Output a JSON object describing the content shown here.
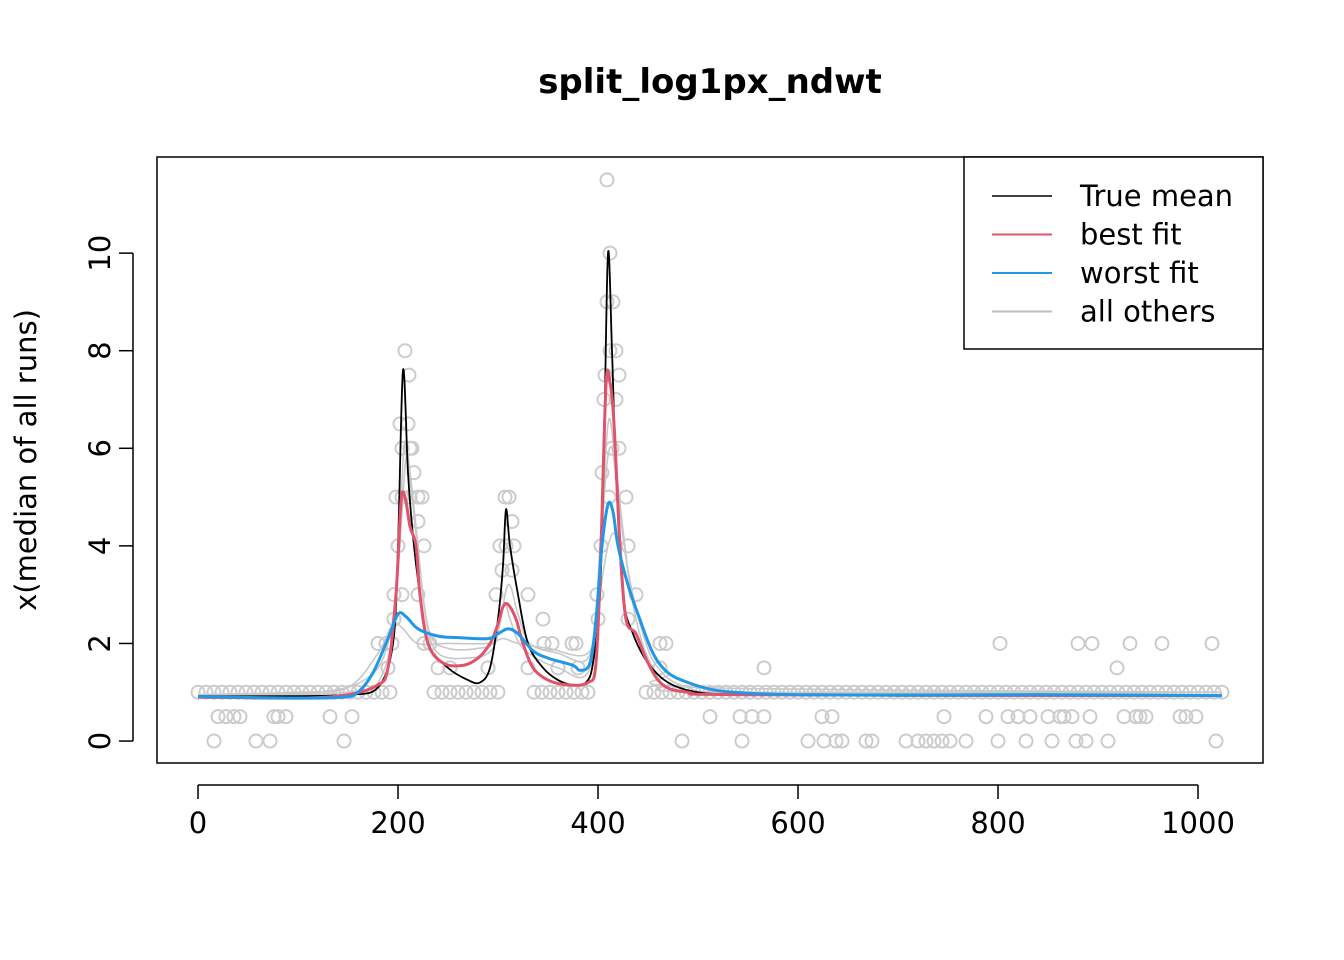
{
  "chart_data": {
    "type": "line",
    "title": "split_log1px_ndwt",
    "xlabel": "",
    "ylabel": "x(median of all runs)",
    "xlim": [
      -41,
      1065
    ],
    "ylim": [
      -0.45,
      11.97
    ],
    "xticks": [
      0,
      200,
      400,
      600,
      800,
      1000
    ],
    "yticks": [
      0,
      2,
      4,
      6,
      8,
      10
    ],
    "xtick_labels": [
      "0",
      "200",
      "400",
      "600",
      "800",
      "1000"
    ],
    "ytick_labels": [
      "0",
      "2",
      "4",
      "6",
      "8",
      "10"
    ],
    "grid": false,
    "legend": {
      "placement": "top-right",
      "entries": [
        {
          "label": "True mean",
          "color": "#000000"
        },
        {
          "label": "best fit",
          "color": "#DF536B"
        },
        {
          "label": "worst fit",
          "color": "#2297E6"
        },
        {
          "label": "all others",
          "color": "#BEBEBE"
        }
      ]
    },
    "series": [
      {
        "name": "all others",
        "color": "#C8C8C8",
        "role": "other",
        "points": [
          [
            0,
            0.95
          ],
          [
            120,
            1.0
          ],
          [
            170,
            1.3
          ],
          [
            190,
            2.0
          ],
          [
            200,
            3.5
          ],
          [
            208,
            5.8
          ],
          [
            214,
            5.0
          ],
          [
            222,
            3.5
          ],
          [
            232,
            2.2
          ],
          [
            250,
            1.9
          ],
          [
            280,
            1.9
          ],
          [
            298,
            2.1
          ],
          [
            310,
            3.2
          ],
          [
            320,
            2.6
          ],
          [
            332,
            2.0
          ],
          [
            360,
            1.8
          ],
          [
            390,
            1.7
          ],
          [
            400,
            3.0
          ],
          [
            408,
            5.5
          ],
          [
            414,
            6.0
          ],
          [
            420,
            5.0
          ],
          [
            430,
            3.5
          ],
          [
            445,
            2.2
          ],
          [
            460,
            1.5
          ],
          [
            490,
            1.1
          ],
          [
            560,
            1.0
          ],
          [
            1024,
            1.0
          ]
        ]
      },
      {
        "name": "all others",
        "color": "#C8C8C8",
        "role": "other",
        "points": [
          [
            0,
            0.95
          ],
          [
            100,
            1.0
          ],
          [
            150,
            1.1
          ],
          [
            180,
            1.8
          ],
          [
            195,
            2.4
          ],
          [
            205,
            2.3
          ],
          [
            220,
            2.0
          ],
          [
            250,
            2.0
          ],
          [
            290,
            2.0
          ],
          [
            305,
            2.1
          ],
          [
            320,
            2.0
          ],
          [
            350,
            1.9
          ],
          [
            390,
            1.8
          ],
          [
            400,
            2.8
          ],
          [
            410,
            4.0
          ],
          [
            418,
            4.2
          ],
          [
            430,
            3.2
          ],
          [
            450,
            2.0
          ],
          [
            470,
            1.4
          ],
          [
            500,
            1.1
          ],
          [
            1024,
            1.0
          ]
        ]
      },
      {
        "name": "all others",
        "color": "#C8C8C8",
        "role": "other",
        "points": [
          [
            0,
            0.95
          ],
          [
            150,
            1.0
          ],
          [
            185,
            1.4
          ],
          [
            198,
            3.0
          ],
          [
            206,
            6.0
          ],
          [
            212,
            5.5
          ],
          [
            220,
            4.0
          ],
          [
            228,
            2.5
          ],
          [
            240,
            1.8
          ],
          [
            270,
            1.7
          ],
          [
            295,
            1.9
          ],
          [
            306,
            2.8
          ],
          [
            312,
            2.5
          ],
          [
            325,
            1.9
          ],
          [
            360,
            1.5
          ],
          [
            392,
            1.5
          ],
          [
            402,
            4.0
          ],
          [
            410,
            6.5
          ],
          [
            416,
            6.0
          ],
          [
            424,
            4.5
          ],
          [
            435,
            2.8
          ],
          [
            450,
            1.7
          ],
          [
            470,
            1.2
          ],
          [
            510,
            1.0
          ],
          [
            1024,
            1.0
          ]
        ]
      },
      {
        "name": "True mean",
        "color": "#000000",
        "role": "true",
        "points": [
          [
            0,
            0.92
          ],
          [
            100,
            0.92
          ],
          [
            150,
            0.95
          ],
          [
            180,
            1.1
          ],
          [
            195,
            2
          ],
          [
            200,
            4
          ],
          [
            205,
            7.6
          ],
          [
            210,
            5.5
          ],
          [
            215,
            4.2
          ],
          [
            222,
            3
          ],
          [
            230,
            2
          ],
          [
            250,
            1.5
          ],
          [
            270,
            1.25
          ],
          [
            282,
            1.2
          ],
          [
            292,
            1.5
          ],
          [
            300,
            2.5
          ],
          [
            305,
            3.6
          ],
          [
            308,
            4.75
          ],
          [
            312,
            4
          ],
          [
            320,
            3
          ],
          [
            330,
            2
          ],
          [
            345,
            1.5
          ],
          [
            360,
            1.25
          ],
          [
            375,
            1.15
          ],
          [
            388,
            1.2
          ],
          [
            395,
            1.6
          ],
          [
            402,
            3
          ],
          [
            406,
            6
          ],
          [
            410,
            10
          ],
          [
            414,
            8
          ],
          [
            418,
            5.5
          ],
          [
            425,
            3
          ],
          [
            435,
            2.2
          ],
          [
            450,
            1.6
          ],
          [
            470,
            1.2
          ],
          [
            500,
            1
          ],
          [
            550,
            0.95
          ],
          [
            700,
            0.93
          ],
          [
            1024,
            0.93
          ]
        ]
      },
      {
        "name": "best fit",
        "color": "#DF536B",
        "role": "best",
        "points": [
          [
            0,
            0.9
          ],
          [
            100,
            0.88
          ],
          [
            150,
            0.95
          ],
          [
            180,
            1.15
          ],
          [
            190,
            1.5
          ],
          [
            198,
            3
          ],
          [
            203,
            4.9
          ],
          [
            207,
            5
          ],
          [
            212,
            4.4
          ],
          [
            218,
            4
          ],
          [
            222,
            3
          ],
          [
            230,
            2
          ],
          [
            245,
            1.6
          ],
          [
            265,
            1.55
          ],
          [
            280,
            1.7
          ],
          [
            292,
            2
          ],
          [
            300,
            2.4
          ],
          [
            305,
            2.75
          ],
          [
            310,
            2.8
          ],
          [
            318,
            2.5
          ],
          [
            325,
            2
          ],
          [
            335,
            1.5
          ],
          [
            350,
            1.25
          ],
          [
            370,
            1.15
          ],
          [
            390,
            1.2
          ],
          [
            398,
            1.6
          ],
          [
            403,
            4
          ],
          [
            408,
            7.3
          ],
          [
            412,
            7.35
          ],
          [
            416,
            6.5
          ],
          [
            422,
            4
          ],
          [
            428,
            2.5
          ],
          [
            438,
            2.2
          ],
          [
            450,
            1.6
          ],
          [
            465,
            1.15
          ],
          [
            490,
            1
          ],
          [
            550,
            0.95
          ],
          [
            1024,
            0.93
          ]
        ]
      },
      {
        "name": "worst fit",
        "color": "#2297E6",
        "role": "worst",
        "points": [
          [
            0,
            0.91
          ],
          [
            100,
            0.88
          ],
          [
            145,
            0.9
          ],
          [
            160,
            1
          ],
          [
            175,
            1.4
          ],
          [
            190,
            2.1
          ],
          [
            200,
            2.6
          ],
          [
            208,
            2.55
          ],
          [
            220,
            2.3
          ],
          [
            240,
            2.15
          ],
          [
            260,
            2.12
          ],
          [
            290,
            2.1
          ],
          [
            300,
            2.2
          ],
          [
            310,
            2.3
          ],
          [
            320,
            2.2
          ],
          [
            335,
            1.85
          ],
          [
            350,
            1.7
          ],
          [
            375,
            1.55
          ],
          [
            382,
            1.45
          ],
          [
            392,
            1.6
          ],
          [
            398,
            2.5
          ],
          [
            404,
            4
          ],
          [
            410,
            4.85
          ],
          [
            415,
            4.7
          ],
          [
            420,
            4
          ],
          [
            430,
            3.2
          ],
          [
            440,
            2.6
          ],
          [
            455,
            1.8
          ],
          [
            470,
            1.4
          ],
          [
            490,
            1.2
          ],
          [
            515,
            1.05
          ],
          [
            550,
            0.98
          ],
          [
            600,
            0.95
          ],
          [
            700,
            0.94
          ],
          [
            850,
            0.95
          ],
          [
            1024,
            0.93
          ]
        ]
      }
    ],
    "scatter": {
      "color": "#CCCCCC",
      "groups": [
        {
          "y": 1,
          "x": [
            0,
            8,
            16,
            24,
            32,
            40,
            48,
            56,
            64,
            72,
            80,
            88,
            96,
            104,
            112,
            120,
            128,
            136,
            144,
            152,
            160,
            168,
            176,
            184,
            192,
            236,
            244,
            252,
            260,
            268,
            276,
            284,
            292,
            300,
            336,
            344,
            352,
            360,
            368,
            376,
            384,
            390,
            448,
            456,
            464,
            472,
            480,
            488,
            496,
            504,
            512,
            520,
            528,
            536,
            544,
            552,
            560,
            568,
            576,
            584,
            592,
            600,
            608,
            616,
            624,
            632,
            640,
            648,
            656,
            664,
            672,
            680,
            688,
            696,
            704,
            712,
            720,
            728,
            736,
            744,
            752,
            760,
            768,
            776,
            784,
            792,
            800,
            808,
            816,
            824,
            832,
            840,
            848,
            856,
            864,
            872,
            880,
            888,
            896,
            904,
            912,
            920,
            928,
            936,
            944,
            952,
            960,
            968,
            976,
            984,
            992,
            1000,
            1008,
            1016,
            1024
          ]
        },
        {
          "y": 0,
          "x": [
            16,
            58,
            72,
            146,
            484,
            544,
            610,
            626,
            638,
            644,
            668,
            674,
            708,
            720,
            728,
            736,
            744,
            752,
            768,
            800,
            828,
            854,
            878,
            888,
            910,
            1018
          ]
        },
        {
          "y": 0.5,
          "x": [
            20,
            28,
            36,
            42,
            76,
            80,
            88,
            132,
            154,
            512,
            542,
            554,
            566,
            624,
            634,
            746,
            788,
            810,
            820,
            832,
            850,
            862,
            866,
            874,
            892,
            926,
            938,
            942,
            948,
            982,
            988,
            998
          ]
        },
        {
          "y": 1.5,
          "x": [
            190,
            240,
            252,
            290,
            330,
            360,
            380,
            462,
            566,
            919
          ]
        },
        {
          "y": 2,
          "x": [
            180,
            188,
            194,
            226,
            232,
            346,
            354,
            374,
            378,
            462,
            468,
            802,
            880,
            894,
            932,
            964,
            1014
          ]
        },
        {
          "y": 2.5,
          "x": [
            196,
            345,
            400,
            430
          ]
        },
        {
          "y": 3,
          "x": [
            196,
            204,
            220,
            298,
            330,
            399,
            438
          ]
        },
        {
          "y": 3.5,
          "x": [
            304,
            314
          ]
        },
        {
          "y": 4,
          "x": [
            200,
            226,
            302,
            308,
            316,
            403,
            430
          ]
        },
        {
          "y": 4.5,
          "x": [
            220,
            314
          ]
        },
        {
          "y": 5,
          "x": [
            198,
            204,
            212,
            220,
            224,
            307,
            311,
            411,
            428
          ]
        },
        {
          "y": 5.5,
          "x": [
            216,
            404
          ]
        },
        {
          "y": 6,
          "x": [
            204,
            212,
            214,
            414,
            421
          ]
        },
        {
          "y": 6.5,
          "x": [
            202,
            210
          ]
        },
        {
          "y": 7,
          "x": [
            406,
            418
          ]
        },
        {
          "y": 7.5,
          "x": [
            211,
            407,
            421
          ]
        },
        {
          "y": 8,
          "x": [
            207,
            412,
            418
          ]
        },
        {
          "y": 9,
          "x": [
            409,
            415
          ]
        },
        {
          "y": 10,
          "x": [
            412
          ]
        },
        {
          "y": 11.5,
          "x": [
            409
          ]
        }
      ]
    }
  }
}
